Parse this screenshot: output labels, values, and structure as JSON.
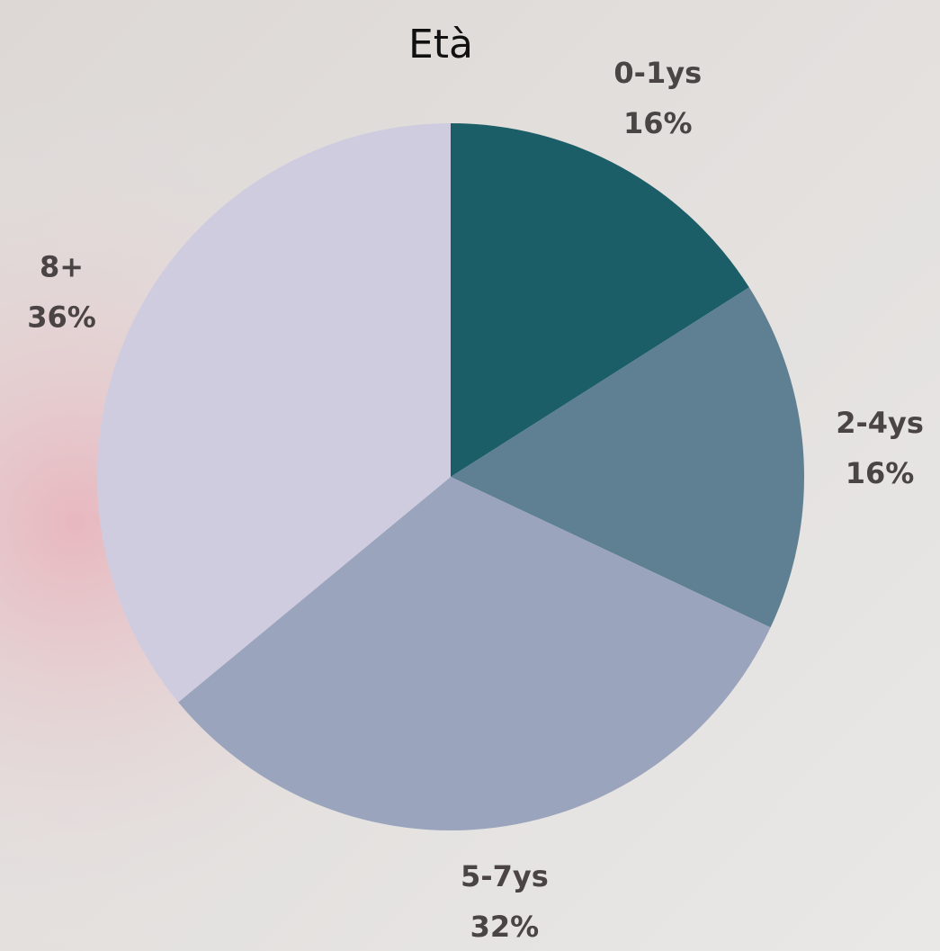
{
  "chart_data": {
    "type": "pie",
    "title": "Età",
    "categories": [
      "0-1ys",
      "2-4ys",
      "5-7ys",
      "8+"
    ],
    "values": [
      16,
      16,
      32,
      36
    ],
    "value_labels": [
      "16%",
      "16%",
      "32%",
      "36%"
    ],
    "colors": [
      "#1b5e68",
      "#5e8092",
      "#9aa5bd",
      "#d0cce0"
    ]
  }
}
